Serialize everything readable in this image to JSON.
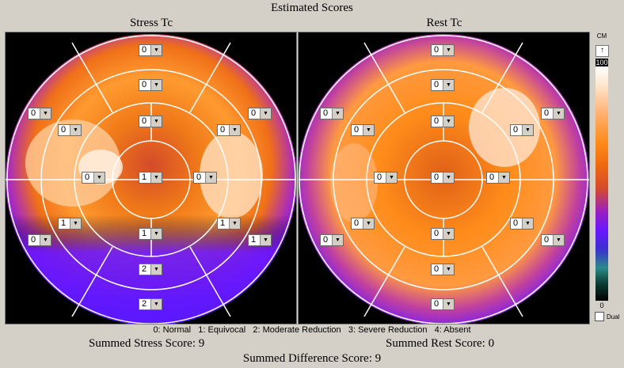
{
  "header": {
    "title": "Estimated Scores"
  },
  "stress": {
    "title": "Stress Tc",
    "segments": [
      "0",
      "0",
      "0",
      "0",
      "0",
      "0",
      "0",
      "1",
      "0",
      "1",
      "1",
      "1",
      "0",
      "1",
      "2",
      "2",
      "0"
    ]
  },
  "rest": {
    "title": "Rest Tc",
    "segments": [
      "0",
      "0",
      "0",
      "0",
      "0",
      "0",
      "0",
      "0",
      "0",
      "0",
      "0",
      "0",
      "0",
      "0",
      "0",
      "0",
      "0"
    ]
  },
  "scale": {
    "unit": "CM",
    "arrow": "↑",
    "max": "100",
    "min": "0",
    "dual_label": "Dual"
  },
  "legend": "0: Normal   1: Equivocal   2: Moderate Reduction   3: Severe Reduction   4: Absent",
  "scores": {
    "stress": "Summed Stress Score: 9",
    "rest": "Summed Rest Score: 0",
    "difference": "Summed Difference Score: 9"
  },
  "colors": {
    "background": "#d4d0c8",
    "panel": "#000000"
  }
}
